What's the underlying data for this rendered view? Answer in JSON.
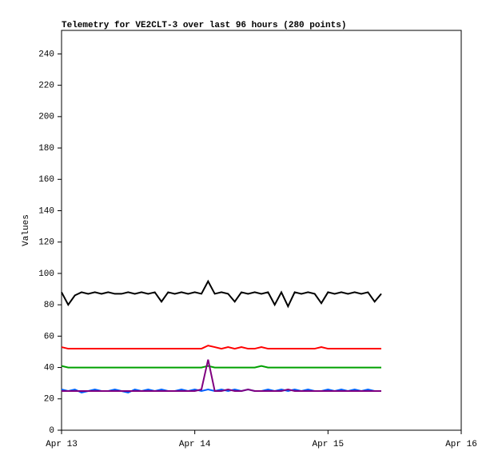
{
  "chart_data": {
    "type": "line",
    "title": "Telemetry for VE2CLT-3 over last 96 hours (280 points)",
    "y_label": "Values",
    "x": [
      0,
      0.05,
      0.1,
      0.15,
      0.2,
      0.25,
      0.3,
      0.35,
      0.4,
      0.45,
      0.5,
      0.55,
      0.6,
      0.65,
      0.7,
      0.75,
      0.8,
      0.85,
      0.9,
      0.95,
      1,
      1.05,
      1.1,
      1.15,
      1.2,
      1.25,
      1.3,
      1.35,
      1.4,
      1.45,
      1.5,
      1.55,
      1.6,
      1.65,
      1.7,
      1.75,
      1.8,
      1.85,
      1.9,
      1.95,
      2,
      2.05,
      2.1,
      2.15,
      2.2,
      2.25,
      2.3,
      2.35,
      2.4
    ],
    "series": [
      {
        "color": "#000000",
        "values": [
          88,
          80,
          86,
          88,
          87,
          88,
          87,
          88,
          87,
          87,
          88,
          87,
          88,
          87,
          88,
          82,
          88,
          87,
          88,
          87,
          88,
          87,
          95,
          87,
          88,
          87,
          82,
          88,
          87,
          88,
          87,
          88,
          80,
          88,
          79,
          88,
          87,
          88,
          87,
          81,
          88,
          87,
          88,
          87,
          88,
          87,
          88,
          82,
          87
        ]
      },
      {
        "color": "#ff0000",
        "values": [
          53,
          52,
          52,
          52,
          52,
          52,
          52,
          52,
          52,
          52,
          52,
          52,
          52,
          52,
          52,
          52,
          52,
          52,
          52,
          52,
          52,
          52,
          54,
          53,
          52,
          53,
          52,
          53,
          52,
          52,
          53,
          52,
          52,
          52,
          52,
          52,
          52,
          52,
          52,
          53,
          52,
          52,
          52,
          52,
          52,
          52,
          52,
          52,
          52
        ]
      },
      {
        "color": "#00a000",
        "values": [
          41,
          40,
          40,
          40,
          40,
          40,
          40,
          40,
          40,
          40,
          40,
          40,
          40,
          40,
          40,
          40,
          40,
          40,
          40,
          40,
          40,
          40,
          41,
          40,
          40,
          40,
          40,
          40,
          40,
          40,
          41,
          40,
          40,
          40,
          40,
          40,
          40,
          40,
          40,
          40,
          40,
          40,
          40,
          40,
          40,
          40,
          40,
          40,
          40
        ]
      },
      {
        "color": "#0060ff",
        "values": [
          26,
          25,
          26,
          24,
          25,
          26,
          25,
          25,
          26,
          25,
          24,
          26,
          25,
          26,
          25,
          26,
          25,
          25,
          26,
          25,
          26,
          25,
          26,
          25,
          26,
          25,
          26,
          25,
          26,
          25,
          25,
          26,
          25,
          26,
          25,
          26,
          25,
          26,
          25,
          25,
          26,
          25,
          26,
          25,
          26,
          25,
          26,
          25,
          25
        ]
      },
      {
        "color": "#800080",
        "values": [
          25,
          25,
          25,
          25,
          25,
          25,
          25,
          25,
          25,
          25,
          25,
          25,
          25,
          25,
          25,
          25,
          25,
          25,
          25,
          25,
          25,
          26,
          45,
          25,
          25,
          26,
          25,
          25,
          26,
          25,
          25,
          25,
          25,
          25,
          26,
          25,
          25,
          25,
          25,
          25,
          25,
          25,
          25,
          25,
          25,
          25,
          25,
          25,
          25
        ]
      }
    ],
    "xlim": [
      0,
      3
    ],
    "xticks": [
      {
        "value": 0,
        "label": "Apr 13"
      },
      {
        "value": 1,
        "label": "Apr 14"
      },
      {
        "value": 2,
        "label": "Apr 15"
      },
      {
        "value": 3,
        "label": "Apr 16"
      }
    ],
    "ylim": [
      0,
      255
    ],
    "yticks": [
      0,
      20,
      40,
      60,
      80,
      100,
      120,
      140,
      160,
      180,
      200,
      220,
      240
    ]
  }
}
